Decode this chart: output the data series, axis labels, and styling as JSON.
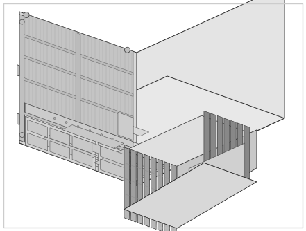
{
  "fig_width": 4.41,
  "fig_height": 3.34,
  "dpi": 100,
  "bg": "#ffffff",
  "border": "#cccccc",
  "c_top": "#e8e8e8",
  "c_front": "#d8d8d8",
  "c_right": "#e4e4e4",
  "c_top2": "#f0f0f0",
  "c_side_dark": "#c0c0c0",
  "c_vent": "#b8b8b8",
  "c_panel": "#d0d0d0",
  "c_mem_top": "#b8b8b8",
  "c_mem_front": "#a0a0a0",
  "c_mem_side": "#888888",
  "c_mem_tray": "#c8c8c8",
  "c_mem_tray2": "#b0b0b0",
  "lc": "#2a2a2a",
  "lc2": "#505050",
  "lc_thin": "#606060"
}
